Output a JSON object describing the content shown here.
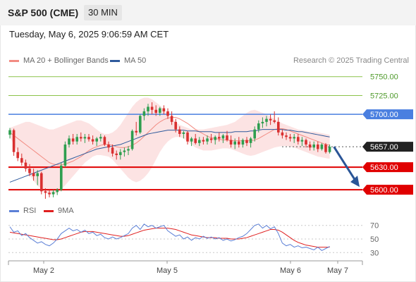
{
  "header": {
    "title": "S&P 500 (CME)",
    "interval": "30 MIN"
  },
  "timestamp": "Tuesday, May 6, 2025 9:06:59 AM CET",
  "credit": "Research © 2025 Trading Central",
  "legend": {
    "main": [
      {
        "label": "MA 20 + Bollinger Bands",
        "color": "#f28b82"
      },
      {
        "label": "MA 50",
        "color": "#2e5a9c"
      }
    ],
    "indicator": [
      {
        "label": "RSI",
        "color": "#5b7fd6"
      },
      {
        "label": "9MA",
        "color": "#e02020"
      }
    ]
  },
  "colors": {
    "up": "#2e9e4f",
    "down": "#d93030",
    "target": "#8bc34a",
    "pivot": "#4a7fe0",
    "support": "#e00000",
    "arrow": "#2a5597"
  },
  "chart_data": {
    "type": "candlestick",
    "price_range": [
      5588,
      5760
    ],
    "x_labels": [
      "May 2",
      "May 5",
      "May 6",
      "May 7"
    ],
    "levels": [
      {
        "value": 5750,
        "label": "5750.00",
        "kind": "target"
      },
      {
        "value": 5725,
        "label": "5725.00",
        "kind": "target"
      },
      {
        "value": 5700,
        "label": "5700.00",
        "kind": "pivot"
      },
      {
        "value": 5657,
        "label": "5657.00",
        "kind": "last"
      },
      {
        "value": 5630,
        "label": "5630.00",
        "kind": "support"
      },
      {
        "value": 5600,
        "label": "5600.00",
        "kind": "support"
      }
    ],
    "candles": [
      [
        5673,
        5682,
        5668,
        5679
      ],
      [
        5679,
        5681,
        5645,
        5650
      ],
      [
        5650,
        5656,
        5638,
        5642
      ],
      [
        5642,
        5648,
        5632,
        5636
      ],
      [
        5636,
        5640,
        5624,
        5628
      ],
      [
        5628,
        5634,
        5618,
        5622
      ],
      [
        5622,
        5628,
        5612,
        5618
      ],
      [
        5618,
        5626,
        5606,
        5622
      ],
      [
        5622,
        5624,
        5594,
        5598
      ],
      [
        5598,
        5602,
        5588,
        5596
      ],
      [
        5596,
        5600,
        5590,
        5594
      ],
      [
        5594,
        5600,
        5590,
        5597
      ],
      [
        5597,
        5602,
        5593,
        5600
      ],
      [
        5600,
        5636,
        5598,
        5632
      ],
      [
        5632,
        5664,
        5630,
        5660
      ],
      [
        5660,
        5672,
        5656,
        5668
      ],
      [
        5668,
        5674,
        5660,
        5664
      ],
      [
        5664,
        5674,
        5660,
        5670
      ],
      [
        5670,
        5676,
        5664,
        5668
      ],
      [
        5668,
        5674,
        5662,
        5670
      ],
      [
        5670,
        5674,
        5664,
        5667
      ],
      [
        5667,
        5672,
        5660,
        5664
      ],
      [
        5664,
        5670,
        5658,
        5668
      ],
      [
        5668,
        5674,
        5664,
        5670
      ],
      [
        5670,
        5672,
        5658,
        5660
      ],
      [
        5660,
        5664,
        5650,
        5656
      ],
      [
        5656,
        5660,
        5644,
        5648
      ],
      [
        5648,
        5652,
        5640,
        5646
      ],
      [
        5646,
        5654,
        5640,
        5650
      ],
      [
        5650,
        5656,
        5644,
        5652
      ],
      [
        5652,
        5658,
        5646,
        5654
      ],
      [
        5654,
        5680,
        5652,
        5678
      ],
      [
        5678,
        5690,
        5672,
        5676
      ],
      [
        5676,
        5700,
        5674,
        5698
      ],
      [
        5698,
        5708,
        5692,
        5704
      ],
      [
        5704,
        5714,
        5698,
        5710
      ],
      [
        5710,
        5716,
        5700,
        5706
      ],
      [
        5706,
        5712,
        5698,
        5702
      ],
      [
        5702,
        5710,
        5698,
        5708
      ],
      [
        5708,
        5712,
        5700,
        5704
      ],
      [
        5704,
        5708,
        5694,
        5698
      ],
      [
        5698,
        5704,
        5686,
        5690
      ],
      [
        5690,
        5694,
        5676,
        5680
      ],
      [
        5680,
        5684,
        5670,
        5674
      ],
      [
        5674,
        5678,
        5668,
        5676
      ],
      [
        5676,
        5678,
        5660,
        5664
      ],
      [
        5664,
        5670,
        5658,
        5668
      ],
      [
        5668,
        5674,
        5660,
        5662
      ],
      [
        5662,
        5670,
        5658,
        5666
      ],
      [
        5666,
        5670,
        5660,
        5664
      ],
      [
        5664,
        5672,
        5660,
        5668
      ],
      [
        5668,
        5674,
        5662,
        5666
      ],
      [
        5666,
        5672,
        5660,
        5670
      ],
      [
        5670,
        5676,
        5664,
        5668
      ],
      [
        5668,
        5674,
        5662,
        5672
      ],
      [
        5672,
        5678,
        5664,
        5666
      ],
      [
        5666,
        5672,
        5656,
        5660
      ],
      [
        5660,
        5668,
        5654,
        5664
      ],
      [
        5664,
        5670,
        5656,
        5660
      ],
      [
        5660,
        5668,
        5656,
        5666
      ],
      [
        5666,
        5670,
        5658,
        5662
      ],
      [
        5662,
        5670,
        5656,
        5668
      ],
      [
        5668,
        5684,
        5664,
        5680
      ],
      [
        5680,
        5692,
        5676,
        5688
      ],
      [
        5688,
        5696,
        5682,
        5690
      ],
      [
        5690,
        5698,
        5684,
        5694
      ],
      [
        5694,
        5700,
        5686,
        5692
      ],
      [
        5692,
        5704,
        5688,
        5690
      ],
      [
        5690,
        5696,
        5672,
        5676
      ],
      [
        5676,
        5680,
        5668,
        5672
      ],
      [
        5672,
        5676,
        5666,
        5670
      ],
      [
        5670,
        5674,
        5664,
        5668
      ],
      [
        5668,
        5674,
        5662,
        5670
      ],
      [
        5670,
        5674,
        5660,
        5664
      ],
      [
        5664,
        5670,
        5658,
        5666
      ],
      [
        5666,
        5668,
        5656,
        5660
      ],
      [
        5660,
        5664,
        5652,
        5656
      ],
      [
        5656,
        5664,
        5652,
        5660
      ],
      [
        5660,
        5664,
        5650,
        5654
      ],
      [
        5654,
        5662,
        5652,
        5660
      ],
      [
        5660,
        5662,
        5648,
        5650
      ],
      [
        5650,
        5660,
        5648,
        5657
      ]
    ],
    "ma20": [
      5676,
      5672,
      5668,
      5664,
      5660,
      5656,
      5652,
      5648,
      5644,
      5640,
      5636,
      5634,
      5633,
      5633,
      5634,
      5636,
      5638,
      5641,
      5644,
      5648,
      5652,
      5655,
      5657,
      5659,
      5660,
      5660,
      5659,
      5657,
      5656,
      5656,
      5657,
      5659,
      5662,
      5666,
      5671,
      5676,
      5681,
      5686,
      5690,
      5693,
      5695,
      5696,
      5696,
      5694,
      5691,
      5688,
      5684,
      5680,
      5677,
      5674,
      5671,
      5669,
      5668,
      5667,
      5666,
      5666,
      5665,
      5665,
      5665,
      5665,
      5665,
      5665,
      5666,
      5668,
      5671,
      5674,
      5677,
      5680,
      5681,
      5681,
      5680,
      5678,
      5676,
      5674,
      5672,
      5670,
      5668,
      5666,
      5664,
      5662,
      5660,
      5659
    ],
    "upper_band": [
      5682,
      5684,
      5686,
      5688,
      5690,
      5690,
      5688,
      5686,
      5684,
      5682,
      5680,
      5680,
      5682,
      5684,
      5686,
      5688,
      5690,
      5692,
      5692,
      5690,
      5688,
      5684,
      5680,
      5676,
      5674,
      5674,
      5676,
      5680,
      5686,
      5694,
      5702,
      5710,
      5716,
      5720,
      5722,
      5722,
      5720,
      5716,
      5712,
      5706,
      5700,
      5694,
      5690,
      5686,
      5684,
      5682,
      5680,
      5680,
      5680,
      5680,
      5681,
      5682,
      5683,
      5684,
      5685,
      5686,
      5688,
      5690,
      5694,
      5698,
      5702,
      5705,
      5706,
      5704,
      5702,
      5700,
      5697,
      5694,
      5691,
      5688,
      5686,
      5684,
      5682,
      5680,
      5679,
      5678,
      5677,
      5677,
      5676,
      5675,
      5674,
      5673
    ],
    "lower_band": [
      5670,
      5660,
      5650,
      5640,
      5630,
      5620,
      5612,
      5606,
      5600,
      5596,
      5594,
      5594,
      5596,
      5600,
      5606,
      5612,
      5618,
      5624,
      5630,
      5636,
      5640,
      5644,
      5646,
      5646,
      5645,
      5644,
      5640,
      5634,
      5628,
      5622,
      5616,
      5612,
      5610,
      5612,
      5616,
      5622,
      5630,
      5640,
      5650,
      5658,
      5664,
      5668,
      5670,
      5670,
      5668,
      5664,
      5660,
      5656,
      5654,
      5652,
      5652,
      5652,
      5653,
      5654,
      5655,
      5655,
      5654,
      5652,
      5650,
      5648,
      5646,
      5645,
      5646,
      5648,
      5650,
      5652,
      5654,
      5656,
      5657,
      5658,
      5658,
      5657,
      5656,
      5654,
      5652,
      5650,
      5648,
      5646,
      5644,
      5643,
      5642,
      5641
    ],
    "ma50": [
      5610,
      5612,
      5614,
      5616,
      5618,
      5620,
      5622,
      5624,
      5626,
      5628,
      5630,
      5632,
      5634,
      5636,
      5638,
      5640,
      5642,
      5644,
      5646,
      5648,
      5650,
      5652,
      5654,
      5655,
      5656,
      5657,
      5658,
      5659,
      5660,
      5662,
      5664,
      5666,
      5668,
      5670,
      5672,
      5674,
      5675,
      5676,
      5677,
      5678,
      5679,
      5679,
      5679,
      5679,
      5679,
      5678,
      5678,
      5678,
      5677,
      5677,
      5677,
      5677,
      5676,
      5676,
      5676,
      5676,
      5676,
      5677,
      5677,
      5677,
      5677,
      5678,
      5678,
      5679,
      5680,
      5680,
      5680,
      5680,
      5680,
      5680,
      5679,
      5679,
      5678,
      5677,
      5677,
      5676,
      5675,
      5674,
      5673,
      5672,
      5671,
      5670
    ],
    "rsi_range": [
      22,
      78
    ],
    "rsi_ticks": [
      70,
      50,
      30
    ],
    "rsi": [
      68,
      60,
      62,
      55,
      58,
      52,
      48,
      44,
      46,
      42,
      40,
      44,
      50,
      58,
      62,
      66,
      62,
      64,
      60,
      63,
      58,
      60,
      55,
      57,
      52,
      50,
      53,
      50,
      52,
      55,
      58,
      66,
      70,
      64,
      72,
      68,
      70,
      66,
      68,
      70,
      62,
      58,
      54,
      56,
      50,
      53,
      48,
      52,
      50,
      54,
      51,
      53,
      50,
      52,
      48,
      50,
      47,
      49,
      52,
      54,
      58,
      64,
      70,
      72,
      66,
      70,
      65,
      68,
      58,
      44,
      40,
      42,
      38,
      40,
      37,
      38,
      36,
      34,
      38,
      33,
      36,
      39
    ],
    "rsi_ma": [
      60,
      59,
      58,
      57,
      56,
      55,
      54,
      53,
      52,
      51,
      50,
      49,
      49,
      50,
      52,
      54,
      56,
      58,
      60,
      61,
      61,
      61,
      60,
      59,
      58,
      57,
      56,
      55,
      54,
      54,
      55,
      57,
      59,
      61,
      63,
      64,
      65,
      66,
      66,
      66,
      66,
      65,
      64,
      62,
      60,
      58,
      56,
      55,
      54,
      53,
      52,
      52,
      52,
      51,
      51,
      51,
      50,
      50,
      50,
      51,
      52,
      54,
      56,
      58,
      60,
      62,
      64,
      64,
      63,
      60,
      56,
      52,
      48,
      45,
      43,
      41,
      40,
      39,
      38,
      38,
      38,
      38
    ]
  }
}
